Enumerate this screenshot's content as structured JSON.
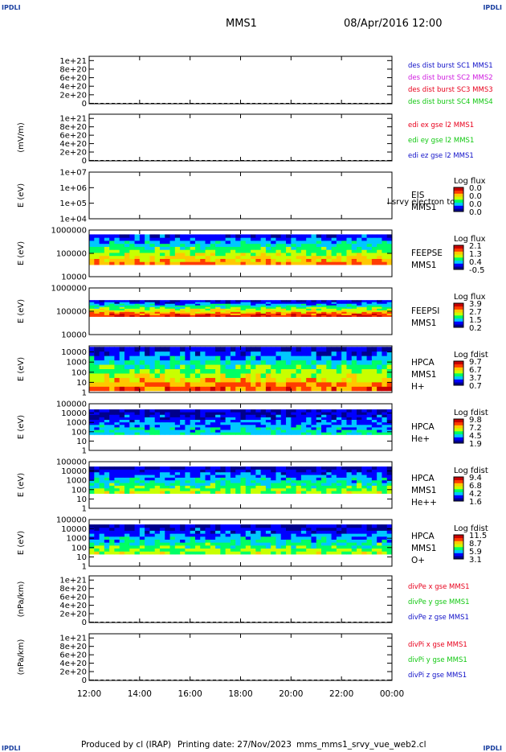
{
  "corner_label": "IPDLI",
  "header": {
    "spacecraft": "MMS1",
    "date": "08/Apr/2016 12:00"
  },
  "footer": {
    "producer": "Produced by cl (IRAP)",
    "print_label": "Printing date: 27/Nov/2023",
    "script": "mms_mms1_srvy_vue_web2.cl"
  },
  "colors": {
    "red": "#e8001c",
    "green": "#10c810",
    "blue": "#1010c8",
    "magenta": "#d01ce0",
    "spectrogram_scale": [
      "#00008c",
      "#0000ff",
      "#00c8ff",
      "#00ff64",
      "#c8ff00",
      "#ffc800",
      "#ff3c00",
      "#c80000"
    ]
  },
  "chart_data": [
    {
      "type": "line",
      "ylabel": "",
      "ytick_labels": [
        "0",
        "2e+20",
        "4e+20",
        "6e+20",
        "8e+20",
        "1e+21"
      ],
      "ylim": [
        -1e+19,
        1.1e+21
      ],
      "legend_placement": "right",
      "series": [
        {
          "name": "des dist burst SC1 MMS1",
          "color": "#1010c8",
          "values": []
        },
        {
          "name": "des dist burst SC2 MMS2",
          "color": "#d01ce0",
          "values": []
        },
        {
          "name": "des dist burst SC3 MMS3",
          "color": "#e8001c",
          "values": []
        },
        {
          "name": "des dist burst SC4 MMS4",
          "color": "#10c810",
          "values": []
        }
      ],
      "dashed_zero_line": true
    },
    {
      "type": "line",
      "ylabel": "(mV/m)",
      "ytick_labels": [
        "0",
        "2e+20",
        "4e+20",
        "6e+20",
        "8e+20",
        "1e+21"
      ],
      "ylim": [
        -1e+19,
        1.1e+21
      ],
      "legend_placement": "right",
      "series": [
        {
          "name": "edi ex gse l2 MMS1",
          "color": "#e8001c",
          "values": []
        },
        {
          "name": "edi ey gse l2 MMS1",
          "color": "#10c810",
          "values": []
        },
        {
          "name": "edi ez gse l2 MMS1",
          "color": "#1010c8",
          "values": []
        }
      ],
      "dashed_zero_line": true
    },
    {
      "type": "heatmap",
      "ylabel": "E (eV)",
      "yscale": "log",
      "ytick_labels": [
        "1e+04",
        "1e+05",
        "1e+06",
        "1e+07"
      ],
      "ylim": [
        10000,
        10000000
      ],
      "instrument": [
        "EIS",
        "MMS1"
      ],
      "overlay_text": "l srvy electron to",
      "colorbar_title": "Log flux",
      "colorbar_ticks": [
        "0.0",
        "0.0",
        "0.0",
        "0.0"
      ],
      "data_band": null
    },
    {
      "type": "heatmap",
      "ylabel": "E (eV)",
      "yscale": "log",
      "ytick_labels": [
        "10000",
        "100000",
        "1000000"
      ],
      "ylim": [
        10000,
        1000000
      ],
      "instrument": [
        "FEEPSE",
        "MMS1"
      ],
      "colorbar_title": "Log flux",
      "colorbar_ticks": [
        "2.1",
        "1.3",
        "0.4",
        "-0.5"
      ],
      "data_band": {
        "low_ev": 33000,
        "high_ev": 650000,
        "low_level": 0.78,
        "high_level": 0.12
      }
    },
    {
      "type": "heatmap",
      "ylabel": "E (eV)",
      "yscale": "log",
      "ytick_labels": [
        "10000",
        "100000",
        "1000000"
      ],
      "ylim": [
        10000,
        1000000
      ],
      "instrument": [
        "FEEPSI",
        "MMS1"
      ],
      "colorbar_title": "Log flux",
      "colorbar_ticks": [
        "3.9",
        "2.7",
        "1.5",
        "0.2"
      ],
      "data_band": {
        "low_ev": 60000,
        "high_ev": 300000,
        "low_level": 0.95,
        "high_level": 0.08
      }
    },
    {
      "type": "heatmap",
      "ylabel": "E (eV)",
      "yscale": "log",
      "ytick_labels": [
        "1",
        "10",
        "100",
        "1000",
        "10000"
      ],
      "ylim": [
        1,
        40000
      ],
      "instrument": [
        "HPCA",
        "MMS1",
        "H+"
      ],
      "colorbar_title": "Log fdist",
      "colorbar_ticks": [
        "9.7",
        "6.7",
        "3.7",
        "0.7"
      ],
      "data_band": {
        "low_ev": 1.5,
        "high_ev": 32000,
        "low_level": 0.85,
        "high_level": 0.08
      }
    },
    {
      "type": "heatmap",
      "ylabel": "E (eV)",
      "yscale": "log",
      "ytick_labels": [
        "1",
        "10",
        "100",
        "1000",
        "10000",
        "100000"
      ],
      "ylim": [
        1,
        100000
      ],
      "instrument": [
        "HPCA",
        "He+"
      ],
      "colorbar_title": "Log fdist",
      "colorbar_ticks": [
        "9.8",
        "7.2",
        "4.5",
        "1.9"
      ],
      "data_band": {
        "low_ev": 50,
        "high_ev": 25000,
        "low_level": 0.35,
        "high_level": 0.05
      }
    },
    {
      "type": "heatmap",
      "ylabel": "E (eV)",
      "yscale": "log",
      "ytick_labels": [
        "1",
        "10",
        "100",
        "1000",
        "10000",
        "100000"
      ],
      "ylim": [
        1,
        100000
      ],
      "instrument": [
        "HPCA",
        "MMS1",
        "He++"
      ],
      "colorbar_title": "Log fdist",
      "colorbar_ticks": [
        "9.4",
        "6.8",
        "4.2",
        "1.6"
      ],
      "data_band": {
        "low_ev": 40,
        "high_ev": 30000,
        "low_level": 0.55,
        "high_level": 0.05
      }
    },
    {
      "type": "heatmap",
      "ylabel": "E (eV)",
      "yscale": "log",
      "ytick_labels": [
        "1",
        "10",
        "100",
        "1000",
        "10000",
        "100000"
      ],
      "ylim": [
        1,
        100000
      ],
      "instrument": [
        "HPCA",
        "MMS1",
        "O+"
      ],
      "colorbar_title": "Log fdist",
      "colorbar_ticks": [
        "11.5",
        "8.7",
        "5.9",
        "3.1"
      ],
      "data_band": {
        "low_ev": 20,
        "high_ev": 30000,
        "low_level": 0.55,
        "high_level": 0.05
      }
    },
    {
      "type": "line",
      "ylabel": "(nPa/km)",
      "ytick_labels": [
        "0",
        "2e+20",
        "4e+20",
        "6e+20",
        "8e+20",
        "1e+21"
      ],
      "ylim": [
        -1e+19,
        1.1e+21
      ],
      "legend_placement": "right",
      "series": [
        {
          "name": "divPe x gse MMS1",
          "color": "#e8001c",
          "values": []
        },
        {
          "name": "divPe y gse MMS1",
          "color": "#10c810",
          "values": []
        },
        {
          "name": "divPe z gse MMS1",
          "color": "#1010c8",
          "values": []
        }
      ],
      "dashed_zero_line": true
    },
    {
      "type": "line",
      "ylabel": "(nPa/km)",
      "ytick_labels": [
        "0",
        "2e+20",
        "4e+20",
        "6e+20",
        "8e+20",
        "1e+21"
      ],
      "ylim": [
        -1e+19,
        1.1e+21
      ],
      "legend_placement": "right",
      "series": [
        {
          "name": "divPi x gse MMS1",
          "color": "#e8001c",
          "values": []
        },
        {
          "name": "divPi y gse MMS1",
          "color": "#10c810",
          "values": []
        },
        {
          "name": "divPi z gse MMS1",
          "color": "#1010c8",
          "values": []
        }
      ],
      "dashed_zero_line": true
    }
  ],
  "x_axis": {
    "tick_labels": [
      "12:00",
      "14:00",
      "16:00",
      "18:00",
      "20:00",
      "22:00",
      "00:00"
    ],
    "range_hours": [
      12,
      24
    ]
  }
}
